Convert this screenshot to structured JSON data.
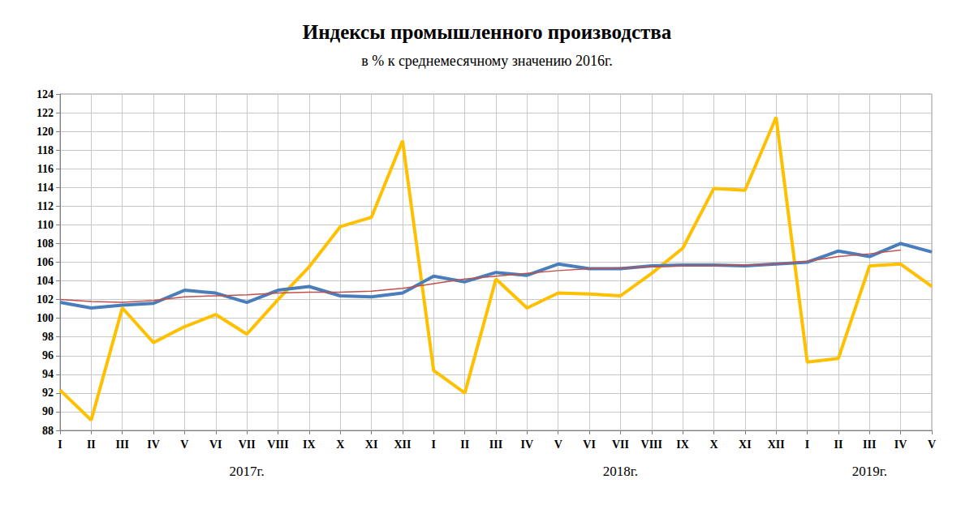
{
  "chart_data": {
    "type": "line",
    "title": "Индексы промышленного производства",
    "subtitle": "в % к среднемесячному значению 2016г.",
    "categories": [
      "I",
      "II",
      "III",
      "IV",
      "V",
      "VI",
      "VII",
      "VIII",
      "IX",
      "X",
      "XI",
      "XII",
      "I",
      "II",
      "III",
      "IV",
      "V",
      "VI",
      "VII",
      "VIII",
      "IX",
      "X",
      "XI",
      "XII",
      "I",
      "II",
      "III",
      "IV",
      "V"
    ],
    "groups": [
      {
        "label": "2017г.",
        "size": 12
      },
      {
        "label": "2018г.",
        "size": 12
      },
      {
        "label": "2019г.",
        "size": 5
      }
    ],
    "series": [
      {
        "color": "#ffc000",
        "values": [
          92.3,
          89.1,
          101.1,
          97.4,
          99.1,
          100.4,
          98.3,
          102.0,
          105.5,
          109.8,
          110.8,
          119.0,
          94.4,
          92.0,
          104.2,
          101.1,
          102.7,
          102.6,
          102.4,
          104.8,
          107.5,
          113.9,
          113.7,
          121.5,
          95.3,
          95.7,
          105.6,
          105.8,
          103.4
        ]
      },
      {
        "color": "#4a7ebb",
        "values": [
          101.7,
          101.1,
          101.4,
          101.6,
          103.0,
          102.7,
          101.7,
          103.0,
          103.4,
          102.4,
          102.3,
          102.7,
          104.5,
          103.9,
          104.9,
          104.6,
          105.8,
          105.3,
          105.3,
          105.6,
          105.7,
          105.7,
          105.6,
          105.8,
          106.0,
          107.2,
          106.6,
          108.0,
          107.1
        ]
      },
      {
        "color": "#c0504d",
        "values": [
          102.0,
          101.8,
          101.7,
          101.9,
          102.3,
          102.4,
          102.5,
          102.7,
          102.8,
          102.8,
          102.9,
          103.2,
          103.7,
          104.2,
          104.5,
          104.8,
          105.1,
          105.3,
          105.4,
          105.5,
          105.6,
          105.6,
          105.7,
          105.8,
          106.1,
          106.6,
          106.9,
          107.3,
          null
        ]
      }
    ],
    "ylim": [
      88,
      124
    ],
    "yticks": [
      88,
      90,
      92,
      94,
      96,
      98,
      100,
      102,
      104,
      106,
      108,
      110,
      112,
      114,
      116,
      118,
      120,
      122,
      124
    ],
    "grid": true
  }
}
